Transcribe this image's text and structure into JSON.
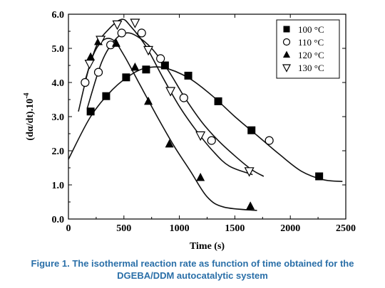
{
  "chart_data": {
    "type": "scatter",
    "xlabel": "Time (s)",
    "ylabel": "(dα/dt).10",
    "ylabel_exponent": "-4",
    "xlim": [
      0,
      2500
    ],
    "ylim": [
      0.0,
      6.0
    ],
    "x_ticks": [
      0,
      500,
      1000,
      1500,
      2000,
      2500
    ],
    "y_ticks": [
      0.0,
      1.0,
      2.0,
      3.0,
      4.0,
      5.0,
      6.0
    ],
    "y_tick_labels": [
      "0.0",
      "1.0",
      "2.0",
      "3.0",
      "4.0",
      "5.0",
      "6.0"
    ],
    "legend_position": "top-right",
    "series": [
      {
        "name": "100 °C",
        "marker": "square-filled",
        "points": [
          [
            200,
            3.15
          ],
          [
            340,
            3.6
          ],
          [
            520,
            4.15
          ],
          [
            700,
            4.38
          ],
          [
            870,
            4.5
          ],
          [
            1080,
            4.2
          ],
          [
            1350,
            3.45
          ],
          [
            1650,
            2.6
          ],
          [
            2260,
            1.25
          ]
        ],
        "curve": [
          [
            0,
            1.75
          ],
          [
            200,
            3.0
          ],
          [
            400,
            3.8
          ],
          [
            600,
            4.3
          ],
          [
            750,
            4.45
          ],
          [
            900,
            4.4
          ],
          [
            1100,
            4.1
          ],
          [
            1300,
            3.6
          ],
          [
            1500,
            3.0
          ],
          [
            1700,
            2.45
          ],
          [
            1900,
            1.9
          ],
          [
            2100,
            1.4
          ],
          [
            2300,
            1.15
          ],
          [
            2470,
            1.1
          ]
        ]
      },
      {
        "name": "110 °C",
        "marker": "circle-open",
        "points": [
          [
            150,
            4.0
          ],
          [
            270,
            4.3
          ],
          [
            380,
            5.1
          ],
          [
            480,
            5.45
          ],
          [
            660,
            5.45
          ],
          [
            830,
            4.7
          ],
          [
            1040,
            3.55
          ],
          [
            1290,
            2.3
          ],
          [
            1810,
            2.3
          ]
        ],
        "curve": [
          [
            170,
            3.25
          ],
          [
            300,
            4.6
          ],
          [
            420,
            5.25
          ],
          [
            520,
            5.45
          ],
          [
            620,
            5.35
          ],
          [
            750,
            5.0
          ],
          [
            900,
            4.35
          ],
          [
            1050,
            3.55
          ],
          [
            1200,
            2.85
          ],
          [
            1350,
            2.3
          ],
          [
            1500,
            1.85
          ],
          [
            1650,
            1.45
          ],
          [
            1760,
            1.25
          ]
        ]
      },
      {
        "name": "120 °C",
        "marker": "triangle-up-filled",
        "points": [
          [
            200,
            4.75
          ],
          [
            270,
            5.2
          ],
          [
            430,
            5.15
          ],
          [
            600,
            4.45
          ],
          [
            720,
            3.45
          ],
          [
            910,
            2.2
          ],
          [
            1190,
            1.22
          ],
          [
            1640,
            0.38
          ]
        ],
        "curve": [
          [
            90,
            3.15
          ],
          [
            200,
            4.6
          ],
          [
            300,
            5.2
          ],
          [
            400,
            5.25
          ],
          [
            500,
            4.8
          ],
          [
            650,
            3.9
          ],
          [
            800,
            3.0
          ],
          [
            950,
            2.15
          ],
          [
            1100,
            1.4
          ],
          [
            1250,
            0.65
          ],
          [
            1400,
            0.35
          ],
          [
            1700,
            0.25
          ]
        ]
      },
      {
        "name": "130 °C",
        "marker": "triangle-down-open",
        "points": [
          [
            190,
            4.55
          ],
          [
            290,
            5.25
          ],
          [
            440,
            5.7
          ],
          [
            600,
            5.75
          ],
          [
            720,
            4.95
          ],
          [
            920,
            3.75
          ],
          [
            1190,
            2.45
          ],
          [
            1630,
            1.4
          ]
        ],
        "curve": [
          [
            140,
            3.95
          ],
          [
            250,
            5.05
          ],
          [
            360,
            5.55
          ],
          [
            480,
            5.85
          ],
          [
            560,
            5.65
          ],
          [
            700,
            5.05
          ],
          [
            850,
            4.15
          ],
          [
            1000,
            3.3
          ],
          [
            1150,
            2.6
          ],
          [
            1300,
            2.0
          ],
          [
            1450,
            1.55
          ],
          [
            1660,
            1.3
          ]
        ]
      }
    ]
  },
  "caption": {
    "line1": "Figure 1. The isothermal reaction rate as function of time obtained for the",
    "line2": "DGEBA/DDM autocatalytic system"
  }
}
